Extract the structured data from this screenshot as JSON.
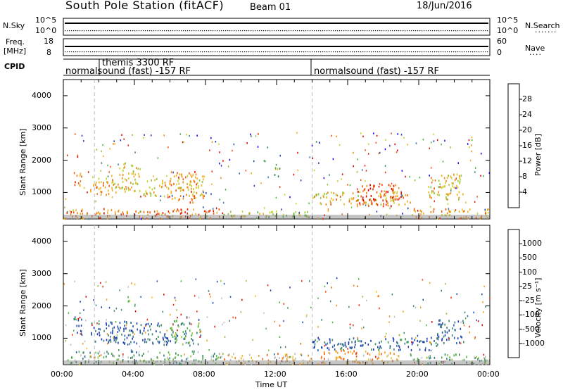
{
  "header": {
    "station": "South Pole Station (fitACF)",
    "beam": "Beam 01",
    "date": "18/Jun/2016"
  },
  "param_panels": {
    "nsky_label": "N.Sky",
    "nsearch_label": "N.Search",
    "nsky_ticks": [
      "10^5",
      "10^0"
    ],
    "nsearch_ticks": [
      "10^5",
      "10^0"
    ],
    "freq_label_1": "Freq.",
    "freq_label_2": "[MHz]",
    "freq_ticks": [
      "18",
      "8"
    ],
    "nave_label": "Nave",
    "nave_ticks": [
      "60",
      "0"
    ],
    "cpid_label": "CPID",
    "cpid_segments": [
      {
        "label": "normalsound (fast) -157 RF",
        "start_hour": 0
      },
      {
        "label": "themis 3300 RF",
        "start_hour": 1.75
      },
      {
        "label": "normalsound (fast) -157 RF",
        "start_hour": 14
      }
    ]
  },
  "chart_data": [
    {
      "type": "heatmap",
      "title": "",
      "xlabel": "Time UT",
      "ylabel": "Slant Range [km]",
      "xlim_hours": [
        0,
        24
      ],
      "ylim": [
        180,
        4500
      ],
      "x_tick_labels": [
        "00:00",
        "04:00",
        "08:00",
        "12:00",
        "16:00",
        "20:00",
        "00:00"
      ],
      "y_ticks": [
        1000,
        2000,
        3000,
        4000
      ],
      "colorbar": {
        "label": "Power [dB]",
        "ticks": [
          "4",
          "8",
          "12",
          "16",
          "20",
          "24",
          "28"
        ],
        "range": [
          0,
          30
        ],
        "colors": [
          "#0000ff",
          "#1e3fb4",
          "#3a78b0",
          "#3c8c5c",
          "#4fb548",
          "#8fc63a",
          "#c8d22a",
          "#f0b020",
          "#f08a1a",
          "#f05a12",
          "#ee2a08",
          "#e00000"
        ]
      },
      "blobs": [
        {
          "t0": 0.5,
          "t1": 1.0,
          "r0": 1150,
          "r1": 1700,
          "level": 0.72
        },
        {
          "t0": 1.5,
          "t1": 3.0,
          "r0": 900,
          "r1": 1550,
          "level": 0.65
        },
        {
          "t0": 3.0,
          "t1": 4.3,
          "r0": 1050,
          "r1": 1950,
          "level": 0.58
        },
        {
          "t0": 4.5,
          "t1": 6.0,
          "r0": 900,
          "r1": 1500,
          "level": 0.6
        },
        {
          "t0": 6.0,
          "t1": 7.5,
          "r0": 700,
          "r1": 1700,
          "level": 0.7
        },
        {
          "t0": 7.0,
          "t1": 7.9,
          "r0": 900,
          "r1": 1600,
          "level": 0.55
        },
        {
          "t0": 0.0,
          "t1": 9.0,
          "r0": 220,
          "r1": 520,
          "level": 0.75
        },
        {
          "t0": 9.0,
          "t1": 14.0,
          "r0": 220,
          "r1": 450,
          "level": 0.5
        },
        {
          "t0": 11.8,
          "t1": 12.2,
          "r0": 1400,
          "r1": 1800,
          "level": 0.45
        },
        {
          "t0": 14.0,
          "t1": 19.5,
          "r0": 650,
          "r1": 1050,
          "level": 0.62
        },
        {
          "t0": 16.5,
          "t1": 19.0,
          "r0": 600,
          "r1": 1300,
          "level": 0.85
        },
        {
          "t0": 19.5,
          "t1": 24.0,
          "r0": 220,
          "r1": 520,
          "level": 0.7
        },
        {
          "t0": 20.5,
          "t1": 22.5,
          "r0": 800,
          "r1": 1600,
          "level": 0.6
        }
      ]
    },
    {
      "type": "heatmap",
      "title": "",
      "xlabel": "Time UT",
      "ylabel": "Slant Range [km]",
      "xlim_hours": [
        0,
        24
      ],
      "ylim": [
        180,
        4500
      ],
      "x_tick_labels": [
        "00:00",
        "04:00",
        "08:00",
        "12:00",
        "16:00",
        "20:00",
        "00:00"
      ],
      "y_ticks": [
        1000,
        2000,
        3000,
        4000
      ],
      "colorbar": {
        "label": "Velocity [m s⁻¹]",
        "ticks": [
          "1000",
          "500",
          "100",
          "25",
          "-25",
          "-100",
          "-500",
          "-1000"
        ],
        "range": [
          -1000,
          1000
        ],
        "colors": [
          "#1e3fb4",
          "#2c5aa8",
          "#3a7d86",
          "#3c8c5c",
          "#4fb548",
          "#8fc63a",
          "#c0c0c0",
          "#c0c0c0",
          "#f0c020",
          "#f0a020",
          "#f08a1a",
          "#f05a12",
          "#ee2a08",
          "#e00000"
        ]
      },
      "blobs": [
        {
          "t0": 0.5,
          "t1": 1.0,
          "r0": 1100,
          "r1": 1700,
          "level": 0.05
        },
        {
          "t0": 1.5,
          "t1": 4.5,
          "r0": 850,
          "r1": 1550,
          "level": 0.1
        },
        {
          "t0": 4.5,
          "t1": 6.0,
          "r0": 800,
          "r1": 1500,
          "level": 0.08
        },
        {
          "t0": 6.0,
          "t1": 7.8,
          "r0": 800,
          "r1": 1600,
          "level": 0.25
        },
        {
          "t0": 3.4,
          "t1": 3.7,
          "r0": 2100,
          "r1": 2400,
          "level": 0.45
        },
        {
          "t0": 0.0,
          "t1": 9.0,
          "r0": 220,
          "r1": 620,
          "level": 0.3
        },
        {
          "t0": 9.0,
          "t1": 14.0,
          "r0": 220,
          "r1": 550,
          "level": 0.65
        },
        {
          "t0": 14.0,
          "t1": 21.0,
          "r0": 650,
          "r1": 1050,
          "level": 0.12
        },
        {
          "t0": 14.5,
          "t1": 19.0,
          "r0": 250,
          "r1": 650,
          "level": 0.7
        },
        {
          "t0": 19.5,
          "t1": 24.0,
          "r0": 220,
          "r1": 550,
          "level": 0.35
        },
        {
          "t0": 21.0,
          "t1": 22.5,
          "r0": 800,
          "r1": 1600,
          "level": 0.1
        }
      ]
    }
  ]
}
